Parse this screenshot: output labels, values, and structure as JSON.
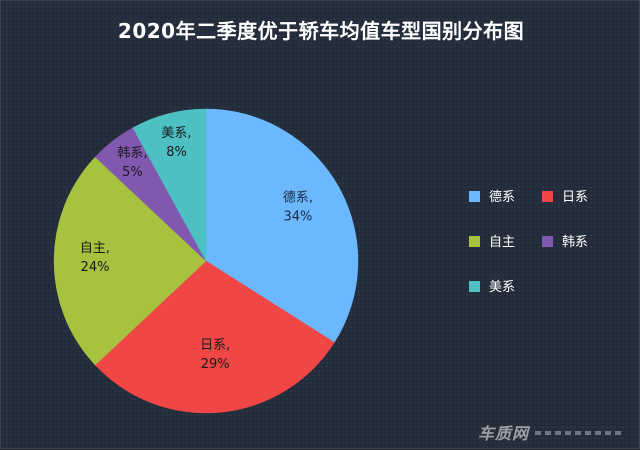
{
  "chart_data": {
    "type": "pie",
    "title": "2020年二季度优于轿车均值车型国别分布图",
    "slices": [
      {
        "name": "德系",
        "value": 34,
        "label_line1": "德系,",
        "label_line2": "34%",
        "color": "#6cb8ff",
        "text_color": "#1a2a44"
      },
      {
        "name": "日系",
        "value": 29,
        "label_line1": "日系,",
        "label_line2": "29%",
        "color": "#f04646",
        "text_color": "#1a1a1a"
      },
      {
        "name": "自主",
        "value": 24,
        "label_line1": "自主,",
        "label_line2": "24%",
        "color": "#a6c23f",
        "text_color": "#1a1a1a"
      },
      {
        "name": "韩系",
        "value": 5,
        "label_line1": "韩系,",
        "label_line2": "5%",
        "color": "#8158b0",
        "text_color": "#1a1a1a"
      },
      {
        "name": "美系",
        "value": 8,
        "label_line1": "美系,",
        "label_line2": "8%",
        "color": "#4dc0c4",
        "text_color": "#1a1a1a"
      }
    ],
    "legend_position": "right"
  },
  "watermark": {
    "text": "车质网"
  }
}
